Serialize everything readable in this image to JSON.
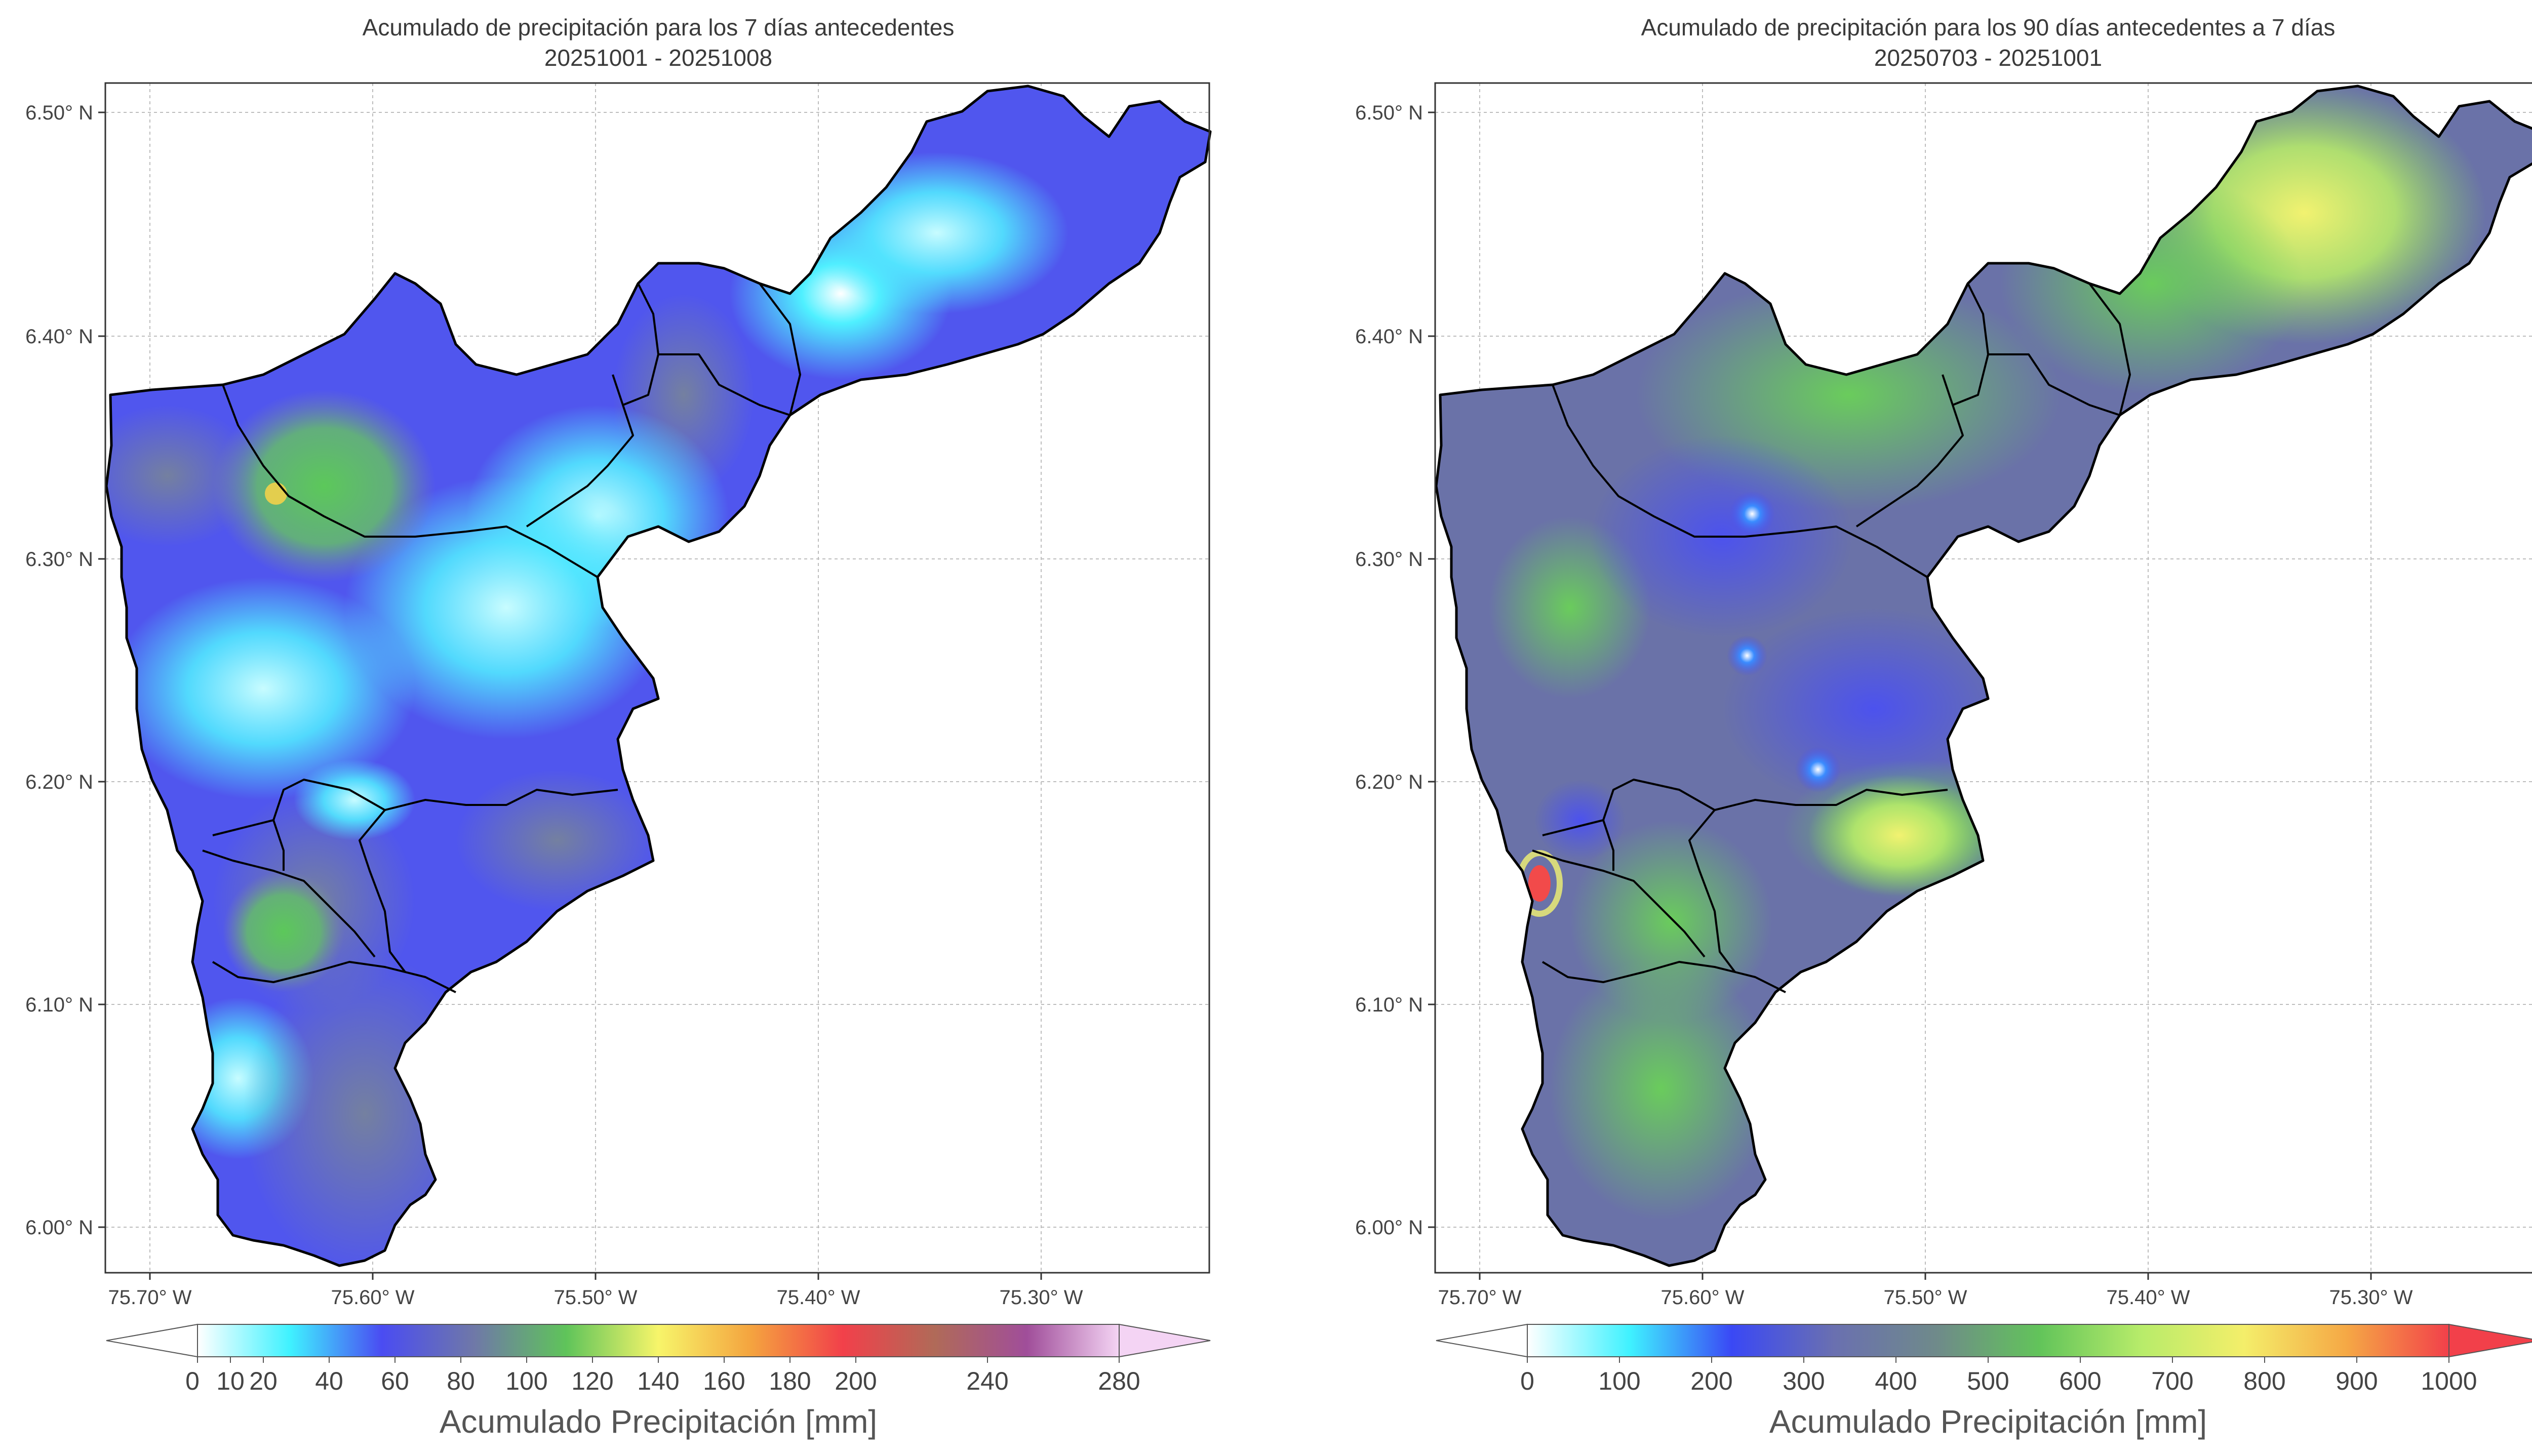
{
  "panels": [
    {
      "title_line1": "Acumulado de precipitación para los 7 días antecedentes",
      "title_line2": "20251001 - 20251008",
      "y_ticks": [
        "6.50° N",
        "6.40° N",
        "6.30° N",
        "6.20° N",
        "6.10° N",
        "6.00° N"
      ],
      "x_ticks": [
        "75.70° W",
        "75.60° W",
        "75.50° W",
        "75.40° W",
        "75.30° W"
      ],
      "colorbar_ticks": [
        "0",
        "10",
        "20",
        "40",
        "60",
        "80",
        "100",
        "120",
        "140",
        "160",
        "180",
        "200",
        "240",
        "280"
      ],
      "colorbar_label": "Acumulado Precipitación [mm]",
      "colorbar_colors": [
        "#ffffff",
        "#3ff2ff",
        "#4a4cf2",
        "#6f78a8",
        "#5fc45a",
        "#f7f56a",
        "#f4a43f",
        "#f2404a",
        "#b06a58",
        "#a04e9a",
        "#f4d4f4"
      ]
    },
    {
      "title_line1": "Acumulado de precipitación para los 90 días antecedentes a 7 días",
      "title_line2": "20250703 - 20251001",
      "y_ticks": [
        "6.50° N",
        "6.40° N",
        "6.30° N",
        "6.20° N",
        "6.10° N",
        "6.00° N"
      ],
      "x_ticks": [
        "75.70° W",
        "75.60° W",
        "75.50° W",
        "75.40° W",
        "75.30° W"
      ],
      "colorbar_ticks": [
        "0",
        "100",
        "200",
        "300",
        "400",
        "500",
        "600",
        "700",
        "800",
        "900",
        "1000"
      ],
      "colorbar_label": "Acumulado Precipitación [mm]",
      "colorbar_colors": [
        "#ffffff",
        "#3ff2ff",
        "#3a48f5",
        "#6a70b0",
        "#6f8a8a",
        "#62c45a",
        "#b8ec6a",
        "#f4ee6a",
        "#f5a845",
        "#f2404a"
      ]
    }
  ],
  "map": {
    "lon_range": [
      -75.72,
      -75.22
    ],
    "lat_range": [
      5.98,
      6.515
    ]
  }
}
